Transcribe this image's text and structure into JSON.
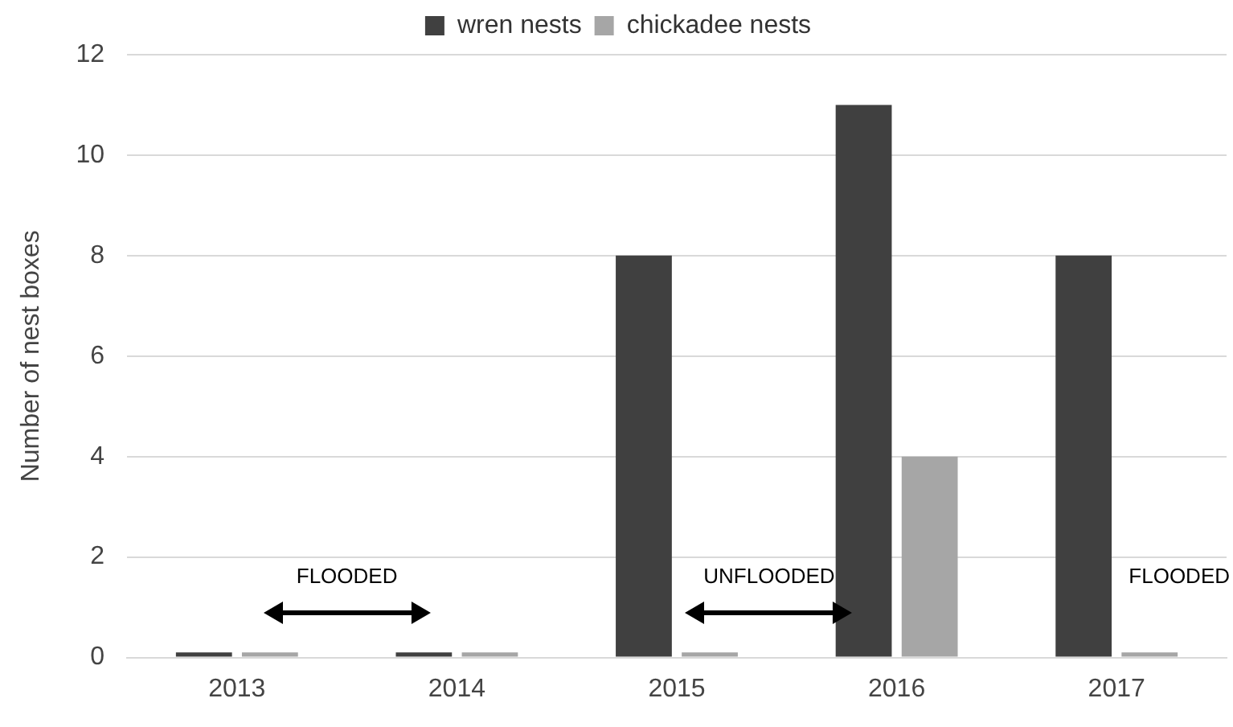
{
  "chart_data": {
    "type": "bar",
    "categories": [
      "2013",
      "2014",
      "2015",
      "2016",
      "2017"
    ],
    "series": [
      {
        "name": "wren nests",
        "color": "#404040",
        "values": [
          0.1,
          0.1,
          8,
          11,
          8
        ]
      },
      {
        "name": "chickadee nests",
        "color": "#a6a6a6",
        "values": [
          0.1,
          0.1,
          0.1,
          4,
          0.1
        ]
      }
    ],
    "ylabel": "Number of nest boxes",
    "ylim": [
      0,
      12
    ],
    "yticks": [
      0,
      2,
      4,
      6,
      8,
      10,
      12
    ],
    "grid": "y",
    "legend": "top",
    "annotations": [
      "FLOODED",
      "UNFLOODED",
      "FLOODED"
    ]
  }
}
